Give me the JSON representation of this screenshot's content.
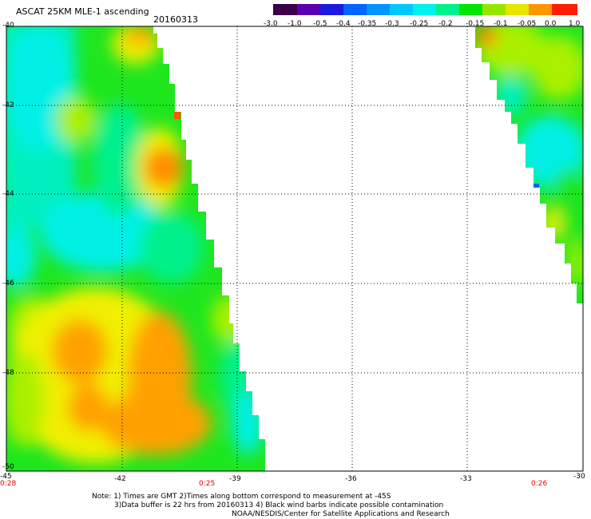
{
  "header": {
    "title": "ASCAT 25KM MLE-1 ascending",
    "date": "20160313"
  },
  "colorbar": {
    "tick_labels": [
      "-3.0",
      "-1.0",
      "-0.5",
      "-0.4",
      "-0.35",
      "-0.3",
      "-0.25",
      "-0.2",
      "-0.15",
      "-0.1",
      "-0.05",
      "0.0",
      "1.0"
    ],
    "colors": [
      "#3a0048",
      "#5a00b0",
      "#1a1ae0",
      "#0064ff",
      "#0096ff",
      "#00c8ff",
      "#00f0ee",
      "#00f08c",
      "#00e600",
      "#96e600",
      "#e6e600",
      "#ff9600",
      "#ff1e00"
    ]
  },
  "map": {
    "lat_labels": [
      "-40",
      "-42",
      "-44",
      "-46",
      "-48",
      "-50"
    ],
    "lon_labels": [
      "-45",
      "-42",
      "-39",
      "-36",
      "-33",
      "-30"
    ],
    "time_labels": [
      "0:28",
      "0:25",
      "0:26"
    ],
    "swath_colors": {
      "cyan": "#00f0e6",
      "aqua_green": "#00f08c",
      "green": "#1ee61e",
      "yellow_green": "#aaf000",
      "yellow": "#f0f000",
      "orange": "#ffa000",
      "dark_orange": "#ff7800",
      "blue": "#0064ff"
    }
  },
  "footer": {
    "line1": "Note: 1) Times are GMT 2)Times along bottom correspond to measurement at -45S",
    "line2": "3)Data buffer is 22 hrs from 20160313 4) Black wind barbs indicate possible contamination",
    "line3": "NOAA/NESDIS/Center for Satellite Applications and Research"
  }
}
